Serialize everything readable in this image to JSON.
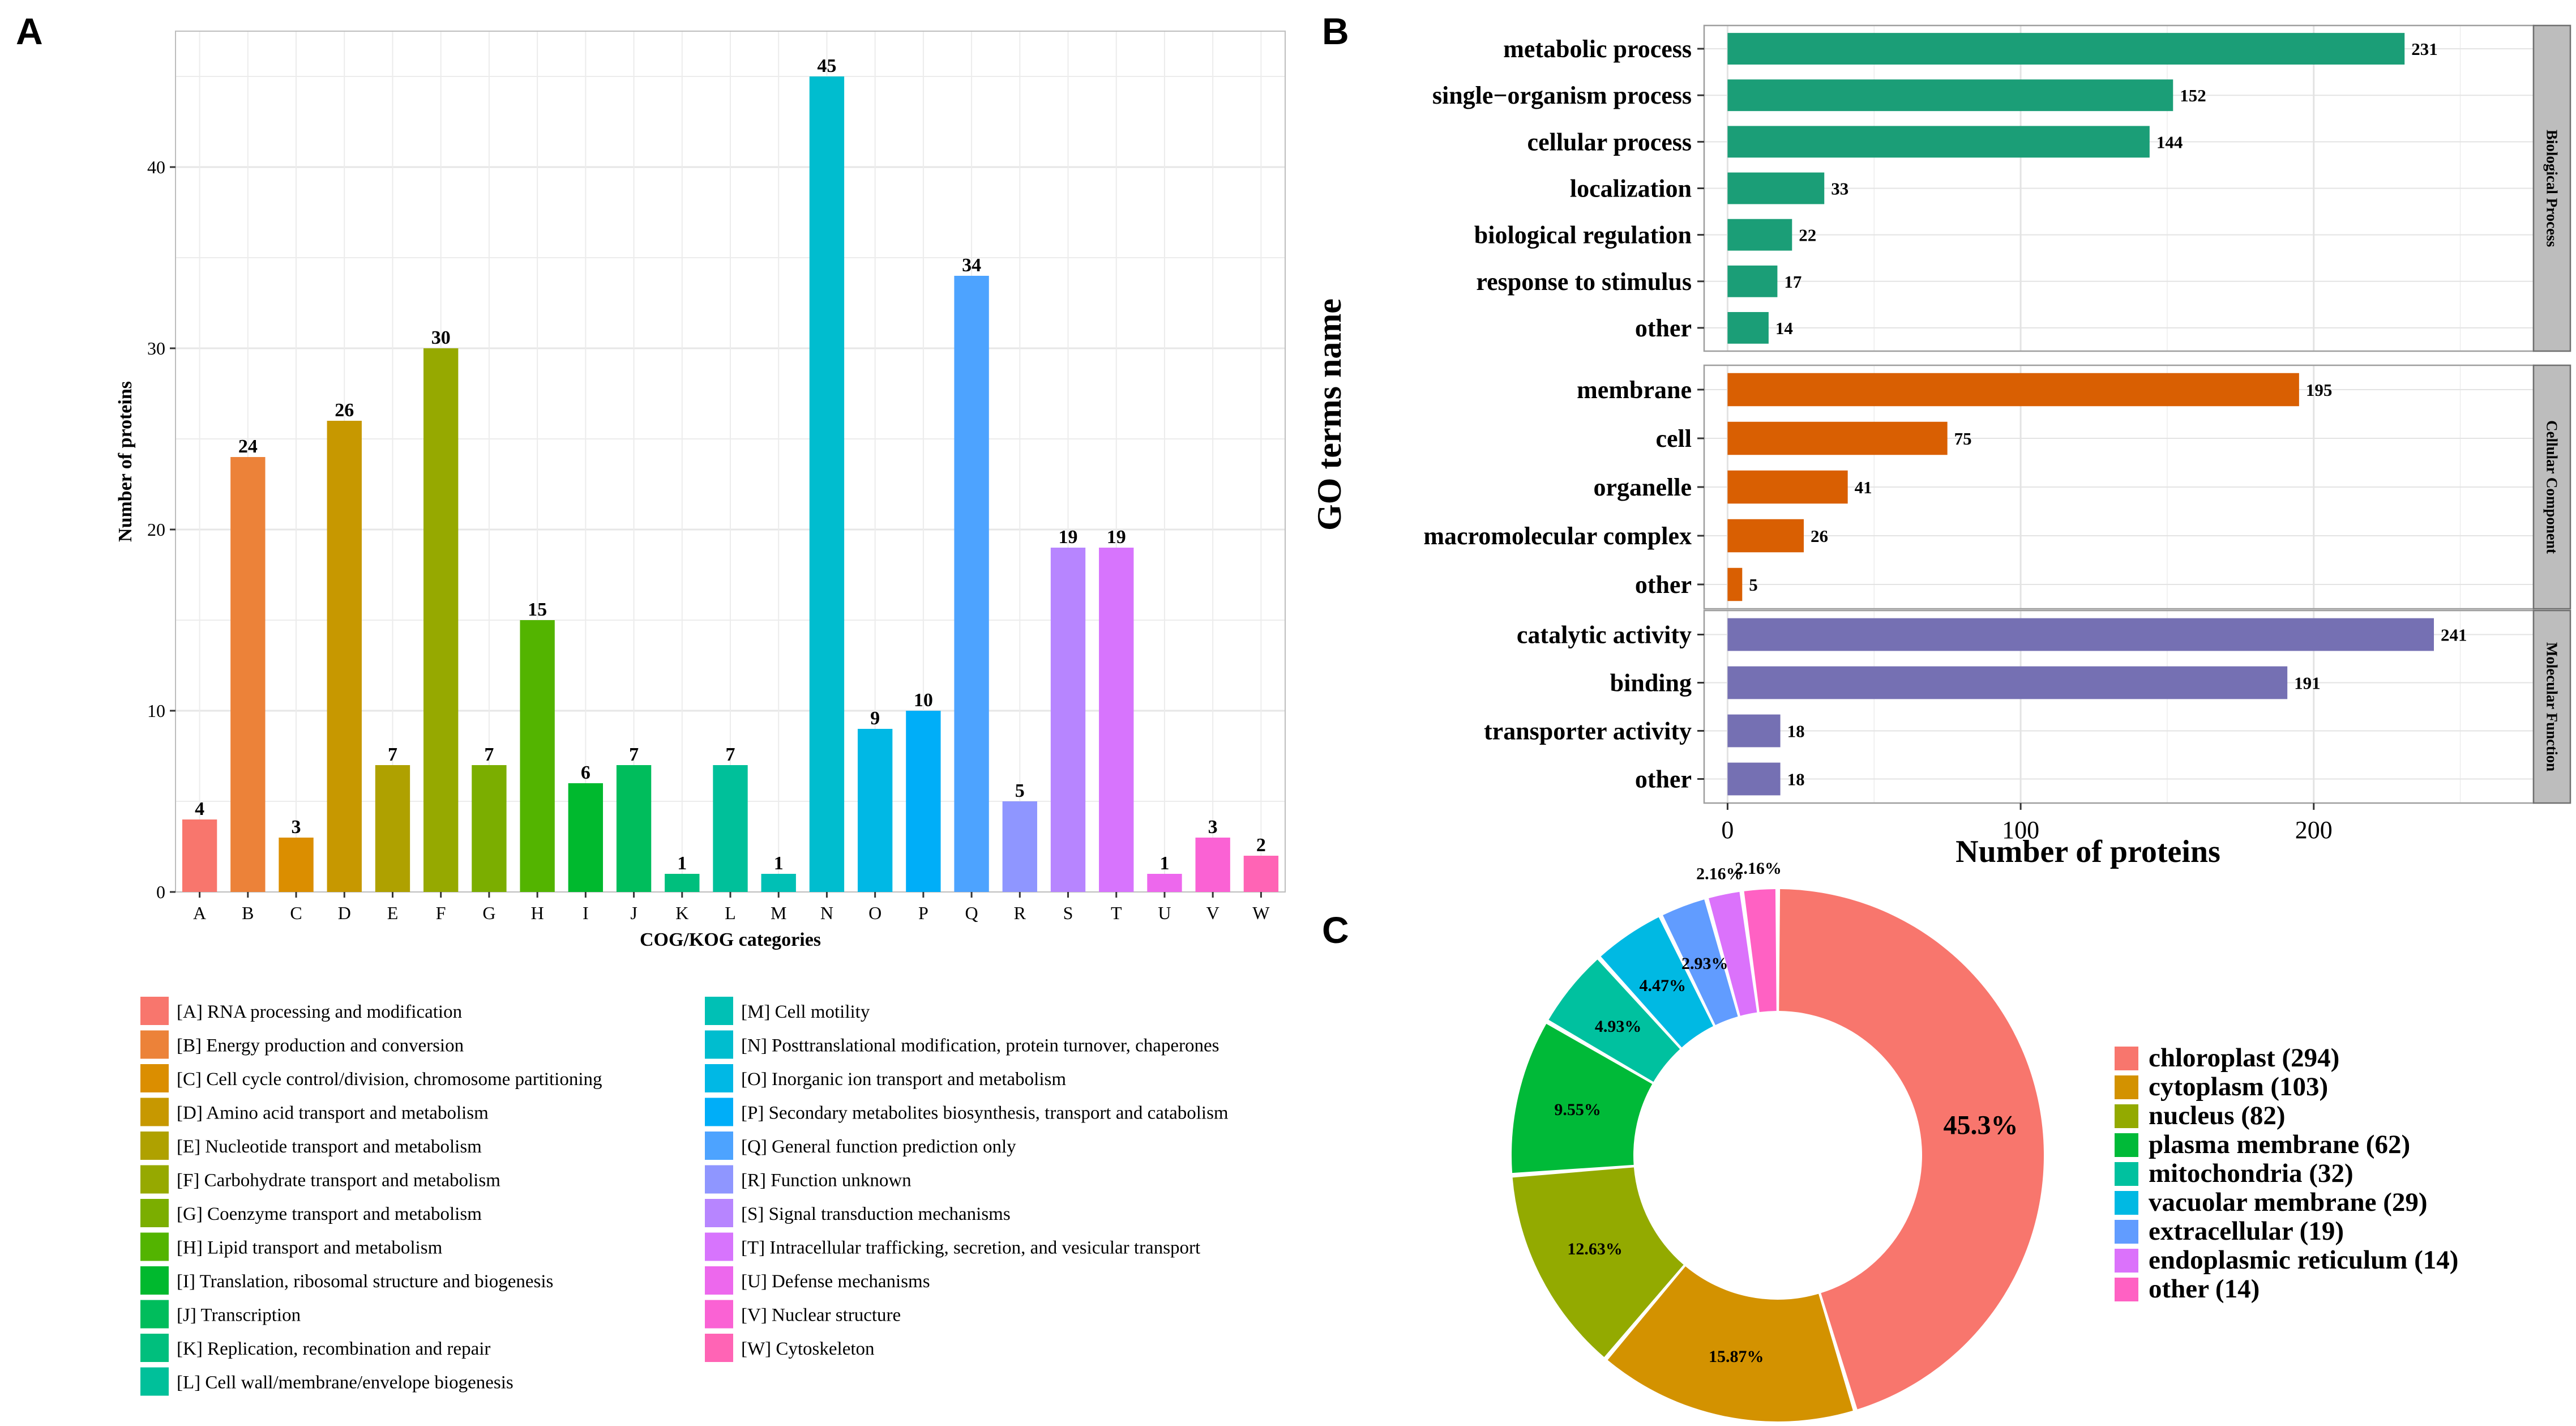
{
  "chart_data": [
    {
      "panel": "A",
      "type": "bar",
      "xlabel": "COG/KOG categories",
      "ylabel": "Number of proteins",
      "ylim": [
        0,
        47.5
      ],
      "yticks": [
        0,
        10,
        20,
        30,
        40
      ],
      "grid": true,
      "categories": [
        "A",
        "B",
        "C",
        "D",
        "E",
        "F",
        "G",
        "H",
        "I",
        "J",
        "K",
        "L",
        "M",
        "N",
        "O",
        "P",
        "Q",
        "R",
        "S",
        "T",
        "U",
        "V",
        "W"
      ],
      "values": [
        4,
        24,
        3,
        26,
        7,
        30,
        7,
        15,
        6,
        7,
        1,
        7,
        1,
        45,
        9,
        10,
        34,
        5,
        19,
        19,
        1,
        3,
        2
      ],
      "colors": [
        "#F8766D",
        "#EC8239",
        "#DB8E00",
        "#C79800",
        "#AFA100",
        "#96A900",
        "#7BAE00",
        "#53B400",
        "#00B92E",
        "#00BD5C",
        "#00BF7D",
        "#00C09A",
        "#00C0B5",
        "#00BDCF",
        "#00B8E5",
        "#00AEF8",
        "#4DA3FF",
        "#8F96FF",
        "#B785FF",
        "#D774FD",
        "#ED68ED",
        "#FA62D4",
        "#FF64B5"
      ],
      "legend": [
        "[A] RNA processing and modification",
        "[B] Energy production and conversion",
        "[C] Cell cycle control/division, chromosome partitioning",
        "[D] Amino acid transport and metabolism",
        "[E] Nucleotide transport and metabolism",
        "[F] Carbohydrate transport and metabolism",
        "[G] Coenzyme transport and metabolism",
        "[H] Lipid transport and metabolism",
        "[I] Translation, ribosomal structure and biogenesis",
        "[J] Transcription",
        "[K] Replication, recombination and repair",
        "[L] Cell wall/membrane/envelope biogenesis",
        "[M] Cell motility",
        "[N] Posttranslational modification, protein turnover, chaperones",
        "[O] Inorganic ion transport and metabolism",
        "[P] Secondary metabolites biosynthesis, transport and catabolism",
        "[Q] General function prediction only",
        "[R] Function unknown",
        "[S] Signal transduction mechanisms",
        "[T] Intracellular trafficking, secretion, and vesicular transport",
        "[U] Defense mechanisms",
        "[V] Nuclear structure",
        "[W] Cytoskeleton"
      ]
    },
    {
      "panel": "B",
      "type": "bar",
      "orientation": "horizontal",
      "xlabel": "Number of proteins",
      "ylabel": "GO terms name",
      "xlim": [
        -8,
        275
      ],
      "xticks": [
        0,
        100,
        200
      ],
      "grid": true,
      "facets": [
        {
          "name": "Biological Process",
          "color": "#1B9E77",
          "terms": [
            "metabolic process",
            "single−organism process",
            "cellular process",
            "localization",
            "biological regulation",
            "response to stimulus",
            "other"
          ],
          "values": [
            231,
            152,
            144,
            33,
            22,
            17,
            14
          ]
        },
        {
          "name": "Cellular Component",
          "color": "#D95F02",
          "terms": [
            "membrane",
            "cell",
            "organelle",
            "macromolecular complex",
            "other"
          ],
          "values": [
            195,
            75,
            41,
            26,
            5
          ]
        },
        {
          "name": "Molecular Function",
          "color": "#7570B3",
          "terms": [
            "catalytic activity",
            "binding",
            "transporter activity",
            "other"
          ],
          "values": [
            241,
            191,
            18,
            18
          ]
        }
      ]
    },
    {
      "panel": "C",
      "type": "pie",
      "style": "donut",
      "slices": [
        {
          "label": "chloroplast",
          "count": 294,
          "percent": "45.3%",
          "color": "#F8766D"
        },
        {
          "label": "cytoplasm",
          "count": 103,
          "percent": "15.87%",
          "color": "#D39200"
        },
        {
          "label": "nucleus",
          "count": 82,
          "percent": "12.63%",
          "color": "#93AA00"
        },
        {
          "label": "plasma membrane",
          "count": 62,
          "percent": "9.55%",
          "color": "#00BA38"
        },
        {
          "label": "mitochondria",
          "count": 32,
          "percent": "4.93%",
          "color": "#00C19F"
        },
        {
          "label": "vacuolar membrane",
          "count": 29,
          "percent": "4.47%",
          "color": "#00B9E3"
        },
        {
          "label": "extracellular",
          "count": 19,
          "percent": "2.93%",
          "color": "#619CFF"
        },
        {
          "label": "endoplasmic reticulum",
          "count": 14,
          "percent": "2.16%",
          "color": "#DB72FB"
        },
        {
          "label": "other",
          "count": 14,
          "percent": "2.16%",
          "color": "#FF61C3"
        }
      ]
    }
  ],
  "panel_labels": {
    "a": "A",
    "b": "B",
    "c": "C"
  }
}
